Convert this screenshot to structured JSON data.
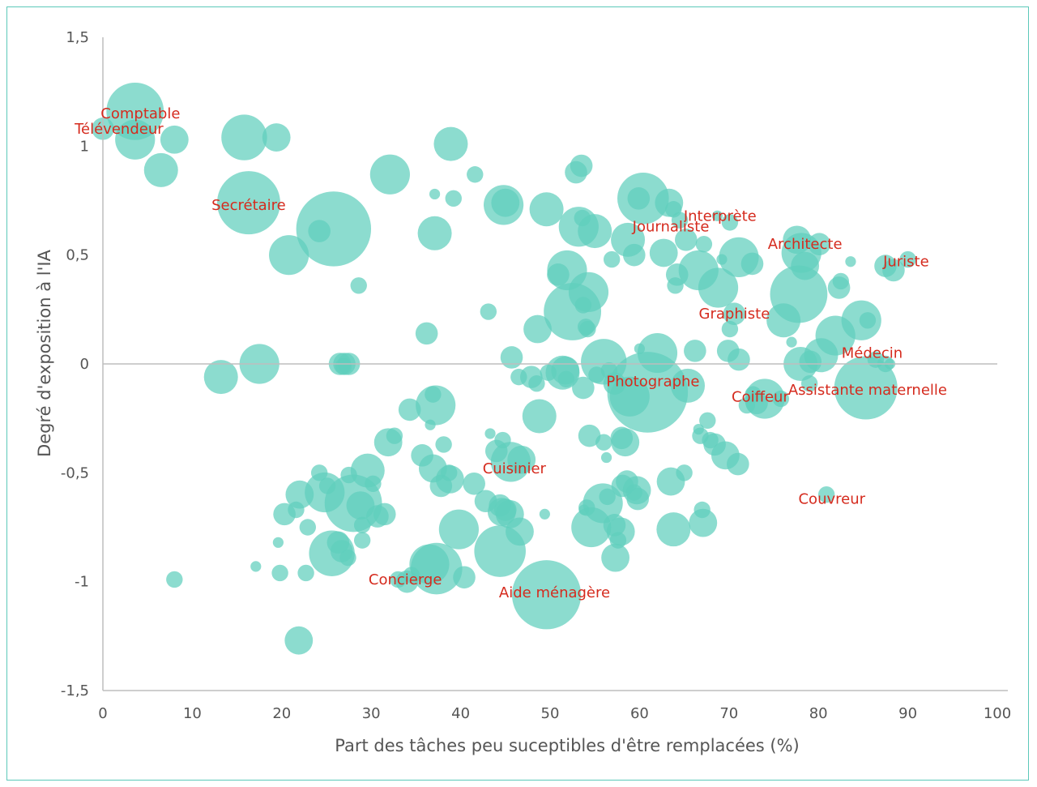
{
  "chart_data": {
    "type": "scatter",
    "variant": "bubble",
    "xlabel": "Part des tâches peu suceptibles d'être remplacées (%)",
    "ylabel": "Degré d'exposition à l'IA",
    "xlim": [
      0,
      100
    ],
    "ylim": [
      -1.5,
      1.5
    ],
    "x_ticks": [
      "0",
      "10",
      "20",
      "30",
      "40",
      "50",
      "60",
      "70",
      "80",
      "90",
      "100"
    ],
    "y_ticks": [
      "1,5",
      "1",
      "0,5",
      "0",
      "-0,5",
      "-1",
      "-1,5"
    ],
    "zero_line": true,
    "grid": false,
    "legend": "none",
    "colors": {
      "bubble": "#5fcfbd",
      "bubble_opacity": 0.72,
      "label": "#d52b1e",
      "axis": "#bdbdbd",
      "text": "#555555",
      "border": "#5cc8b9"
    },
    "labels": [
      {
        "text": "Comptable",
        "x": 4.2,
        "y": 1.15
      },
      {
        "text": "Télévendeur",
        "x": 1.8,
        "y": 1.08
      },
      {
        "text": "Secrétaire",
        "x": 16.3,
        "y": 0.73
      },
      {
        "text": "Journaliste",
        "x": 63.5,
        "y": 0.63
      },
      {
        "text": "Interprète",
        "x": 69.0,
        "y": 0.68
      },
      {
        "text": "Architecte",
        "x": 78.5,
        "y": 0.55
      },
      {
        "text": "Juriste",
        "x": 89.8,
        "y": 0.47
      },
      {
        "text": "Graphiste",
        "x": 70.6,
        "y": 0.23
      },
      {
        "text": "Médecin",
        "x": 86.0,
        "y": 0.05
      },
      {
        "text": "Photographe",
        "x": 61.5,
        "y": -0.08
      },
      {
        "text": "Coiffeur",
        "x": 73.5,
        "y": -0.15
      },
      {
        "text": "Assistante maternelle",
        "x": 85.5,
        "y": -0.12
      },
      {
        "text": "Cuisinier",
        "x": 46.0,
        "y": -0.48
      },
      {
        "text": "Couvreur",
        "x": 81.5,
        "y": -0.62
      },
      {
        "text": "Concierge",
        "x": 33.8,
        "y": -0.99
      },
      {
        "text": "Aide ménagère",
        "x": 50.5,
        "y": -1.05
      }
    ],
    "points": [
      {
        "x": 3.6,
        "y": 1.16,
        "s": 9
      },
      {
        "x": 3.6,
        "y": 1.03,
        "s": 6
      },
      {
        "x": 0.0,
        "y": 1.08,
        "s": 3
      },
      {
        "x": 6.5,
        "y": 0.89,
        "s": 5
      },
      {
        "x": 8.0,
        "y": 1.03,
        "s": 4
      },
      {
        "x": 15.8,
        "y": 1.04,
        "s": 7
      },
      {
        "x": 19.4,
        "y": 1.04,
        "s": 4
      },
      {
        "x": 16.3,
        "y": 0.74,
        "s": 10
      },
      {
        "x": 25.8,
        "y": 0.62,
        "s": 12
      },
      {
        "x": 24.2,
        "y": 0.61,
        "s": 3
      },
      {
        "x": 20.8,
        "y": 0.5,
        "s": 6
      },
      {
        "x": 28.6,
        "y": 0.36,
        "s": 2
      },
      {
        "x": 32.1,
        "y": 0.87,
        "s": 6
      },
      {
        "x": 38.9,
        "y": 1.01,
        "s": 5
      },
      {
        "x": 41.6,
        "y": 0.87,
        "s": 2
      },
      {
        "x": 37.1,
        "y": 0.78,
        "s": 1
      },
      {
        "x": 39.2,
        "y": 0.76,
        "s": 2
      },
      {
        "x": 37.1,
        "y": 0.6,
        "s": 5
      },
      {
        "x": 44.8,
        "y": 0.73,
        "s": 6
      },
      {
        "x": 45.0,
        "y": 0.74,
        "s": 4
      },
      {
        "x": 49.6,
        "y": 0.71,
        "s": 5
      },
      {
        "x": 52.9,
        "y": 0.88,
        "s": 3
      },
      {
        "x": 53.5,
        "y": 0.91,
        "s": 3
      },
      {
        "x": 53.2,
        "y": 0.63,
        "s": 6
      },
      {
        "x": 53.6,
        "y": 0.67,
        "s": 2
      },
      {
        "x": 55.0,
        "y": 0.61,
        "s": 5
      },
      {
        "x": 56.9,
        "y": 0.48,
        "s": 2
      },
      {
        "x": 60.4,
        "y": 0.76,
        "s": 8
      },
      {
        "x": 59.9,
        "y": 0.76,
        "s": 3
      },
      {
        "x": 63.3,
        "y": 0.74,
        "s": 4
      },
      {
        "x": 63.8,
        "y": 0.71,
        "s": 2
      },
      {
        "x": 64.5,
        "y": 0.66,
        "s": 2
      },
      {
        "x": 58.7,
        "y": 0.57,
        "s": 5
      },
      {
        "x": 59.4,
        "y": 0.5,
        "s": 3
      },
      {
        "x": 62.7,
        "y": 0.51,
        "s": 4
      },
      {
        "x": 65.2,
        "y": 0.57,
        "s": 3
      },
      {
        "x": 67.2,
        "y": 0.55,
        "s": 2
      },
      {
        "x": 68.7,
        "y": 0.68,
        "s": 1
      },
      {
        "x": 70.1,
        "y": 0.65,
        "s": 2
      },
      {
        "x": 64.2,
        "y": 0.41,
        "s": 3
      },
      {
        "x": 64.0,
        "y": 0.36,
        "s": 2
      },
      {
        "x": 66.6,
        "y": 0.43,
        "s": 6
      },
      {
        "x": 68.8,
        "y": 0.35,
        "s": 6
      },
      {
        "x": 69.2,
        "y": 0.48,
        "s": 1
      },
      {
        "x": 71.1,
        "y": 0.49,
        "s": 6
      },
      {
        "x": 72.6,
        "y": 0.46,
        "s": 3
      },
      {
        "x": 77.6,
        "y": 0.57,
        "s": 4
      },
      {
        "x": 78.1,
        "y": 0.51,
        "s": 6
      },
      {
        "x": 80.1,
        "y": 0.55,
        "s": 3
      },
      {
        "x": 78.5,
        "y": 0.45,
        "s": 4
      },
      {
        "x": 83.6,
        "y": 0.47,
        "s": 1
      },
      {
        "x": 77.8,
        "y": 0.32,
        "s": 9
      },
      {
        "x": 76.1,
        "y": 0.2,
        "s": 5
      },
      {
        "x": 82.5,
        "y": 0.38,
        "s": 2
      },
      {
        "x": 82.3,
        "y": 0.35,
        "s": 3
      },
      {
        "x": 70.1,
        "y": 0.16,
        "s": 2
      },
      {
        "x": 70.6,
        "y": 0.23,
        "s": 3
      },
      {
        "x": 90.0,
        "y": 0.48,
        "s": 2
      },
      {
        "x": 87.5,
        "y": 0.45,
        "s": 3
      },
      {
        "x": 88.4,
        "y": 0.43,
        "s": 3
      },
      {
        "x": 51.9,
        "y": 0.43,
        "s": 6
      },
      {
        "x": 50.9,
        "y": 0.41,
        "s": 3
      },
      {
        "x": 54.3,
        "y": 0.33,
        "s": 6
      },
      {
        "x": 52.5,
        "y": 0.24,
        "s": 9
      },
      {
        "x": 53.7,
        "y": 0.27,
        "s": 2
      },
      {
        "x": 54.0,
        "y": 0.17,
        "s": 2
      },
      {
        "x": 54.2,
        "y": 0.16,
        "s": 2
      },
      {
        "x": 43.1,
        "y": 0.24,
        "s": 2
      },
      {
        "x": 48.6,
        "y": 0.16,
        "s": 4
      },
      {
        "x": 36.2,
        "y": 0.14,
        "s": 3
      },
      {
        "x": 84.8,
        "y": 0.2,
        "s": 6
      },
      {
        "x": 85.5,
        "y": 0.2,
        "s": 2
      },
      {
        "x": 81.9,
        "y": 0.13,
        "s": 6
      },
      {
        "x": 77.0,
        "y": 0.1,
        "s": 1
      },
      {
        "x": 80.3,
        "y": 0.04,
        "s": 5
      },
      {
        "x": 78.0,
        "y": 0.0,
        "s": 5
      },
      {
        "x": 79.1,
        "y": 0.01,
        "s": 3
      },
      {
        "x": 86.4,
        "y": 0.02,
        "s": 2
      },
      {
        "x": 87.5,
        "y": 0.0,
        "s": 2
      },
      {
        "x": 88.0,
        "y": 0.0,
        "s": 1
      },
      {
        "x": 72.7,
        "y": -0.14,
        "s": 2
      },
      {
        "x": 85.3,
        "y": -0.11,
        "s": 10
      },
      {
        "x": 79.0,
        "y": -0.09,
        "s": 2
      },
      {
        "x": 75.8,
        "y": -0.16,
        "s": 2
      },
      {
        "x": 74.0,
        "y": -0.16,
        "s": 6
      },
      {
        "x": 73.1,
        "y": -0.18,
        "s": 3
      },
      {
        "x": 72.0,
        "y": -0.19,
        "s": 2
      },
      {
        "x": 69.9,
        "y": 0.06,
        "s": 3
      },
      {
        "x": 71.1,
        "y": 0.02,
        "s": 3
      },
      {
        "x": 66.2,
        "y": 0.06,
        "s": 3
      },
      {
        "x": 62.0,
        "y": 0.05,
        "s": 6
      },
      {
        "x": 60.9,
        "y": -0.13,
        "s": 13
      },
      {
        "x": 58.9,
        "y": -0.15,
        "s": 6
      },
      {
        "x": 65.4,
        "y": -0.1,
        "s": 5
      },
      {
        "x": 60.0,
        "y": 0.07,
        "s": 1
      },
      {
        "x": 56.0,
        "y": 0.01,
        "s": 7
      },
      {
        "x": 56.6,
        "y": -0.03,
        "s": 2
      },
      {
        "x": 57.2,
        "y": -0.09,
        "s": 3
      },
      {
        "x": 51.4,
        "y": -0.04,
        "s": 5
      },
      {
        "x": 51.7,
        "y": -0.03,
        "s": 4
      },
      {
        "x": 53.7,
        "y": -0.11,
        "s": 3
      },
      {
        "x": 55.2,
        "y": -0.05,
        "s": 2
      },
      {
        "x": 51.8,
        "y": -0.07,
        "s": 2
      },
      {
        "x": 45.7,
        "y": 0.03,
        "s": 3
      },
      {
        "x": 46.5,
        "y": -0.06,
        "s": 2
      },
      {
        "x": 47.9,
        "y": -0.06,
        "s": 3
      },
      {
        "x": 48.5,
        "y": -0.09,
        "s": 2
      },
      {
        "x": 49.8,
        "y": -0.04,
        "s": 2
      },
      {
        "x": 48.8,
        "y": -0.24,
        "s": 5
      },
      {
        "x": 17.5,
        "y": 0.0,
        "s": 6
      },
      {
        "x": 13.2,
        "y": -0.06,
        "s": 5
      },
      {
        "x": 26.5,
        "y": 0.0,
        "s": 3
      },
      {
        "x": 27.0,
        "y": 0.0,
        "s": 3
      },
      {
        "x": 27.5,
        "y": 0.0,
        "s": 3
      },
      {
        "x": 26.9,
        "y": -0.01,
        "s": 2
      },
      {
        "x": 37.2,
        "y": -0.19,
        "s": 6
      },
      {
        "x": 36.9,
        "y": -0.14,
        "s": 2
      },
      {
        "x": 34.3,
        "y": -0.21,
        "s": 3
      },
      {
        "x": 36.6,
        "y": -0.28,
        "s": 1
      },
      {
        "x": 32.6,
        "y": -0.33,
        "s": 2
      },
      {
        "x": 31.9,
        "y": -0.36,
        "s": 4
      },
      {
        "x": 35.7,
        "y": -0.42,
        "s": 3
      },
      {
        "x": 38.1,
        "y": -0.37,
        "s": 2
      },
      {
        "x": 43.3,
        "y": -0.32,
        "s": 1
      },
      {
        "x": 44.7,
        "y": -0.35,
        "s": 2
      },
      {
        "x": 44.0,
        "y": -0.4,
        "s": 3
      },
      {
        "x": 45.6,
        "y": -0.45,
        "s": 6
      },
      {
        "x": 46.8,
        "y": -0.44,
        "s": 4
      },
      {
        "x": 36.9,
        "y": -0.48,
        "s": 4
      },
      {
        "x": 38.8,
        "y": -0.53,
        "s": 4
      },
      {
        "x": 37.8,
        "y": -0.56,
        "s": 3
      },
      {
        "x": 38.7,
        "y": -0.5,
        "s": 2
      },
      {
        "x": 41.5,
        "y": -0.55,
        "s": 3
      },
      {
        "x": 24.2,
        "y": -0.5,
        "s": 2
      },
      {
        "x": 22.0,
        "y": -0.6,
        "s": 4
      },
      {
        "x": 20.3,
        "y": -0.69,
        "s": 3
      },
      {
        "x": 21.6,
        "y": -0.67,
        "s": 2
      },
      {
        "x": 24.8,
        "y": -0.59,
        "s": 6
      },
      {
        "x": 25.1,
        "y": -0.56,
        "s": 2
      },
      {
        "x": 29.6,
        "y": -0.49,
        "s": 5
      },
      {
        "x": 30.2,
        "y": -0.55,
        "s": 2
      },
      {
        "x": 27.5,
        "y": -0.51,
        "s": 2
      },
      {
        "x": 28.0,
        "y": -0.64,
        "s": 9
      },
      {
        "x": 28.8,
        "y": -0.65,
        "s": 4
      },
      {
        "x": 31.5,
        "y": -0.69,
        "s": 3
      },
      {
        "x": 30.7,
        "y": -0.7,
        "s": 3
      },
      {
        "x": 29.0,
        "y": -0.74,
        "s": 2
      },
      {
        "x": 22.9,
        "y": -0.75,
        "s": 2
      },
      {
        "x": 19.6,
        "y": -0.82,
        "s": 1
      },
      {
        "x": 29.0,
        "y": -0.81,
        "s": 2
      },
      {
        "x": 25.6,
        "y": -0.87,
        "s": 7
      },
      {
        "x": 26.3,
        "y": -0.82,
        "s": 3
      },
      {
        "x": 26.7,
        "y": -0.86,
        "s": 3
      },
      {
        "x": 27.4,
        "y": -0.89,
        "s": 2
      },
      {
        "x": 17.1,
        "y": -0.93,
        "s": 1
      },
      {
        "x": 19.8,
        "y": -0.96,
        "s": 2
      },
      {
        "x": 22.7,
        "y": -0.96,
        "s": 2
      },
      {
        "x": 34.0,
        "y": -1.0,
        "s": 3
      },
      {
        "x": 33.0,
        "y": -0.99,
        "s": 2
      },
      {
        "x": 34.5,
        "y": -0.97,
        "s": 2
      },
      {
        "x": 36.5,
        "y": -0.92,
        "s": 6
      },
      {
        "x": 37.3,
        "y": -0.94,
        "s": 8
      },
      {
        "x": 40.4,
        "y": -0.98,
        "s": 3
      },
      {
        "x": 8.0,
        "y": -0.99,
        "s": 2
      },
      {
        "x": 21.9,
        "y": -1.27,
        "s": 4
      },
      {
        "x": 39.8,
        "y": -0.76,
        "s": 6
      },
      {
        "x": 44.4,
        "y": -0.86,
        "s": 8
      },
      {
        "x": 44.4,
        "y": -0.65,
        "s": 3
      },
      {
        "x": 45.0,
        "y": -0.67,
        "s": 3
      },
      {
        "x": 44.6,
        "y": -0.68,
        "s": 4
      },
      {
        "x": 45.5,
        "y": -0.69,
        "s": 4
      },
      {
        "x": 46.6,
        "y": -0.77,
        "s": 4
      },
      {
        "x": 42.8,
        "y": -0.63,
        "s": 3
      },
      {
        "x": 49.6,
        "y": -1.06,
        "s": 11
      },
      {
        "x": 49.4,
        "y": -0.69,
        "s": 1
      },
      {
        "x": 55.9,
        "y": -0.64,
        "s": 6
      },
      {
        "x": 56.4,
        "y": -0.61,
        "s": 2
      },
      {
        "x": 53.8,
        "y": -0.67,
        "s": 1
      },
      {
        "x": 54.1,
        "y": -0.66,
        "s": 2
      },
      {
        "x": 54.6,
        "y": -0.75,
        "s": 6
      },
      {
        "x": 57.2,
        "y": -0.74,
        "s": 3
      },
      {
        "x": 57.9,
        "y": -0.77,
        "s": 4
      },
      {
        "x": 57.3,
        "y": -0.89,
        "s": 4
      },
      {
        "x": 57.6,
        "y": -0.81,
        "s": 2
      },
      {
        "x": 58.1,
        "y": -0.56,
        "s": 3
      },
      {
        "x": 58.6,
        "y": -0.54,
        "s": 3
      },
      {
        "x": 59.7,
        "y": -0.58,
        "s": 4
      },
      {
        "x": 59.8,
        "y": -0.62,
        "s": 3
      },
      {
        "x": 59.4,
        "y": -0.59,
        "s": 2
      },
      {
        "x": 56.3,
        "y": -0.43,
        "s": 1
      },
      {
        "x": 56.0,
        "y": -0.36,
        "s": 2
      },
      {
        "x": 54.4,
        "y": -0.33,
        "s": 3
      },
      {
        "x": 58.0,
        "y": -0.34,
        "s": 3
      },
      {
        "x": 58.4,
        "y": -0.36,
        "s": 4
      },
      {
        "x": 63.5,
        "y": -0.54,
        "s": 4
      },
      {
        "x": 65.0,
        "y": -0.5,
        "s": 2
      },
      {
        "x": 63.8,
        "y": -0.76,
        "s": 5
      },
      {
        "x": 67.1,
        "y": -0.73,
        "s": 4
      },
      {
        "x": 67.0,
        "y": -0.67,
        "s": 2
      },
      {
        "x": 66.8,
        "y": -0.33,
        "s": 2
      },
      {
        "x": 67.6,
        "y": -0.26,
        "s": 2
      },
      {
        "x": 67.9,
        "y": -0.35,
        "s": 2
      },
      {
        "x": 68.4,
        "y": -0.37,
        "s": 3
      },
      {
        "x": 69.6,
        "y": -0.42,
        "s": 4
      },
      {
        "x": 71.0,
        "y": -0.46,
        "s": 3
      },
      {
        "x": 80.9,
        "y": -0.6,
        "s": 2
      },
      {
        "x": 66.6,
        "y": -0.3,
        "s": 1
      }
    ]
  }
}
